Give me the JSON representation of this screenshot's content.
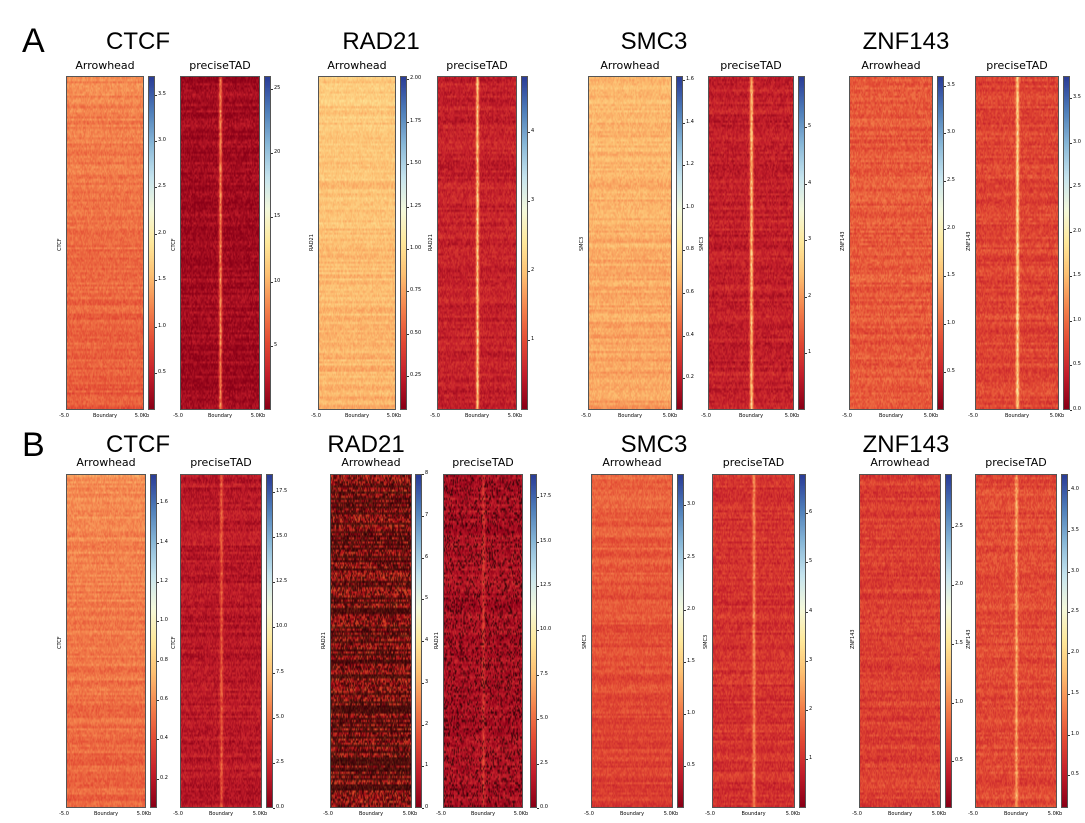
{
  "rows": [
    {
      "label": "A"
    },
    {
      "label": "B"
    }
  ],
  "colors": {
    "colormap": [
      "#8b0017",
      "#c41e2b",
      "#e34a33",
      "#f4824c",
      "#fdbe70",
      "#fee89a",
      "#f5f9dc",
      "#c6e4ef",
      "#89b8d8",
      "#4f7fba",
      "#2b3e98"
    ],
    "boundary_stripe": "#ffd98a",
    "dark_noise": "#1a0a08"
  },
  "chart_data": [
    {
      "type": "heatmap",
      "row": "A",
      "group": "CTCF",
      "panel_title": "Arrowhead",
      "ylabel": "CTCF",
      "xticks": [
        "-5.0",
        "Boundary",
        "5.0Kb"
      ],
      "colorbar_ticks": [
        "0.5",
        "1.0",
        "1.5",
        "2.0",
        "2.5",
        "3.0",
        "3.5"
      ],
      "colorbar_range": [
        0.1,
        3.7
      ],
      "background_value": 1.2,
      "boundary_peak": 1.2,
      "tone": "orange"
    },
    {
      "type": "heatmap",
      "row": "A",
      "group": "CTCF",
      "panel_title": "preciseTAD",
      "ylabel": "CTCF",
      "xticks": [
        "-5.0",
        "Boundary",
        "5.0Kb"
      ],
      "colorbar_ticks": [
        "5",
        "10",
        "15",
        "20",
        "25"
      ],
      "colorbar_range": [
        0,
        26
      ],
      "background_value": 1.0,
      "boundary_peak": 10,
      "tone": "red"
    },
    {
      "type": "heatmap",
      "row": "A",
      "group": "RAD21",
      "panel_title": "Arrowhead",
      "ylabel": "RAD21",
      "xticks": [
        "-5.0",
        "Boundary",
        "5.0Kb"
      ],
      "colorbar_ticks": [
        "0.25",
        "0.50",
        "0.75",
        "1.00",
        "1.25",
        "1.50",
        "1.75",
        "2.00"
      ],
      "colorbar_range": [
        0.05,
        2.02
      ],
      "background_value": 0.8,
      "boundary_peak": 0.8,
      "tone": "light"
    },
    {
      "type": "heatmap",
      "row": "A",
      "group": "RAD21",
      "panel_title": "preciseTAD",
      "ylabel": "RAD21",
      "xticks": [
        "-5.0",
        "Boundary",
        "5.0Kb"
      ],
      "colorbar_ticks": [
        "1",
        "2",
        "3",
        "4"
      ],
      "colorbar_range": [
        0,
        4.8
      ],
      "background_value": 0.5,
      "boundary_peak": 2.5,
      "tone": "red"
    },
    {
      "type": "heatmap",
      "row": "A",
      "group": "SMC3",
      "panel_title": "Arrowhead",
      "ylabel": "SMC3",
      "xticks": [
        "-5.0",
        "Boundary",
        "5.0Kb"
      ],
      "colorbar_ticks": [
        "0.2",
        "0.4",
        "0.6",
        "0.8",
        "1.0",
        "1.2",
        "1.4",
        "1.6"
      ],
      "colorbar_range": [
        0.05,
        1.62
      ],
      "background_value": 0.6,
      "boundary_peak": 0.6,
      "tone": "light"
    },
    {
      "type": "heatmap",
      "row": "A",
      "group": "SMC3",
      "panel_title": "preciseTAD",
      "ylabel": "SMC3",
      "xticks": [
        "-5.0",
        "Boundary",
        "5.0Kb"
      ],
      "colorbar_ticks": [
        "1",
        "2",
        "3",
        "4",
        "5"
      ],
      "colorbar_range": [
        0,
        5.9
      ],
      "background_value": 0.6,
      "boundary_peak": 3.0,
      "tone": "red"
    },
    {
      "type": "heatmap",
      "row": "A",
      "group": "ZNF143",
      "panel_title": "Arrowhead",
      "ylabel": "ZNF143",
      "xticks": [
        "-5.0",
        "Boundary",
        "5.0Kb"
      ],
      "colorbar_ticks": [
        "0.5",
        "1.0",
        "1.5",
        "2.0",
        "2.5",
        "3.0",
        "3.5"
      ],
      "colorbar_range": [
        0.1,
        3.6
      ],
      "background_value": 0.9,
      "boundary_peak": 0.9,
      "tone": "red"
    },
    {
      "type": "heatmap",
      "row": "A",
      "group": "ZNF143",
      "panel_title": "preciseTAD",
      "ylabel": "ZNF143",
      "xticks": [
        "-5.0",
        "Boundary",
        "5.0Kb"
      ],
      "colorbar_ticks": [
        "0.0",
        "0.5",
        "1.0",
        "1.5",
        "2.0",
        "2.5",
        "3.0",
        "3.5"
      ],
      "colorbar_range": [
        0,
        3.75
      ],
      "background_value": 0.7,
      "boundary_peak": 2.0,
      "tone": "red"
    },
    {
      "type": "heatmap",
      "row": "B",
      "group": "CTCF",
      "panel_title": "Arrowhead",
      "ylabel": "CTCF",
      "xticks": [
        "-5.0",
        "Boundary",
        "5.0Kb"
      ],
      "colorbar_ticks": [
        "0.2",
        "0.4",
        "0.6",
        "0.8",
        "1.0",
        "1.2",
        "1.4",
        "1.6"
      ],
      "colorbar_range": [
        0.05,
        1.75
      ],
      "background_value": 0.6,
      "boundary_peak": 0.6,
      "tone": "orange"
    },
    {
      "type": "heatmap",
      "row": "B",
      "group": "CTCF",
      "panel_title": "preciseTAD",
      "ylabel": "CTCF",
      "xticks": [
        "-5.0",
        "Boundary",
        "5.0Kb"
      ],
      "colorbar_ticks": [
        "0.0",
        "2.5",
        "5.0",
        "7.5",
        "10.0",
        "12.5",
        "15.0",
        "17.5"
      ],
      "colorbar_range": [
        0,
        18.5
      ],
      "background_value": 1.5,
      "boundary_peak": 5.0,
      "tone": "red"
    },
    {
      "type": "heatmap",
      "row": "B",
      "group": "RAD21",
      "panel_title": "Arrowhead",
      "ylabel": "RAD21",
      "xticks": [
        "-5.0",
        "Boundary",
        "5.0Kb"
      ],
      "colorbar_ticks": [
        "0",
        "1",
        "2",
        "3",
        "4",
        "5",
        "6",
        "7",
        "8"
      ],
      "colorbar_range": [
        0,
        8
      ],
      "background_value": 1.0,
      "boundary_peak": 1.0,
      "tone": "dark"
    },
    {
      "type": "heatmap",
      "row": "B",
      "group": "RAD21",
      "panel_title": "preciseTAD",
      "ylabel": "RAD21",
      "xticks": [
        "-5.0",
        "Boundary",
        "5.0Kb"
      ],
      "colorbar_ticks": [
        "0.0",
        "2.5",
        "5.0",
        "7.5",
        "10.0",
        "12.5",
        "15.0",
        "17.5"
      ],
      "colorbar_range": [
        0,
        18.8
      ],
      "background_value": 1.2,
      "boundary_peak": 4.0,
      "tone": "darkred"
    },
    {
      "type": "heatmap",
      "row": "B",
      "group": "SMC3",
      "panel_title": "Arrowhead",
      "ylabel": "SMC3",
      "xticks": [
        "-5.0",
        "Boundary",
        "5.0Kb"
      ],
      "colorbar_ticks": [
        "0.5",
        "1.0",
        "1.5",
        "2.0",
        "2.5",
        "3.0"
      ],
      "colorbar_range": [
        0.1,
        3.3
      ],
      "background_value": 0.9,
      "boundary_peak": 0.9,
      "tone": "orange"
    },
    {
      "type": "heatmap",
      "row": "B",
      "group": "SMC3",
      "panel_title": "preciseTAD",
      "ylabel": "SMC3",
      "xticks": [
        "-5.0",
        "Boundary",
        "5.0Kb"
      ],
      "colorbar_ticks": [
        "1",
        "2",
        "3",
        "4",
        "5",
        "6"
      ],
      "colorbar_range": [
        0,
        6.8
      ],
      "background_value": 1.0,
      "boundary_peak": 2.5,
      "tone": "red"
    },
    {
      "type": "heatmap",
      "row": "B",
      "group": "ZNF143",
      "panel_title": "Arrowhead",
      "ylabel": "ZNF143",
      "xticks": [
        "-5.0",
        "Boundary",
        "5.0Kb"
      ],
      "colorbar_ticks": [
        "0.5",
        "1.0",
        "1.5",
        "2.0",
        "2.5"
      ],
      "colorbar_range": [
        0.1,
        2.95
      ],
      "background_value": 0.6,
      "boundary_peak": 0.6,
      "tone": "red"
    },
    {
      "type": "heatmap",
      "row": "B",
      "group": "ZNF143",
      "panel_title": "preciseTAD",
      "ylabel": "ZNF143",
      "xticks": [
        "-5.0",
        "Boundary",
        "5.0Kb"
      ],
      "colorbar_ticks": [
        "0.5",
        "1.0",
        "1.5",
        "2.0",
        "2.5",
        "3.0",
        "3.5",
        "4.0"
      ],
      "colorbar_range": [
        0.1,
        4.2
      ],
      "background_value": 0.9,
      "boundary_peak": 1.8,
      "tone": "red"
    }
  ]
}
